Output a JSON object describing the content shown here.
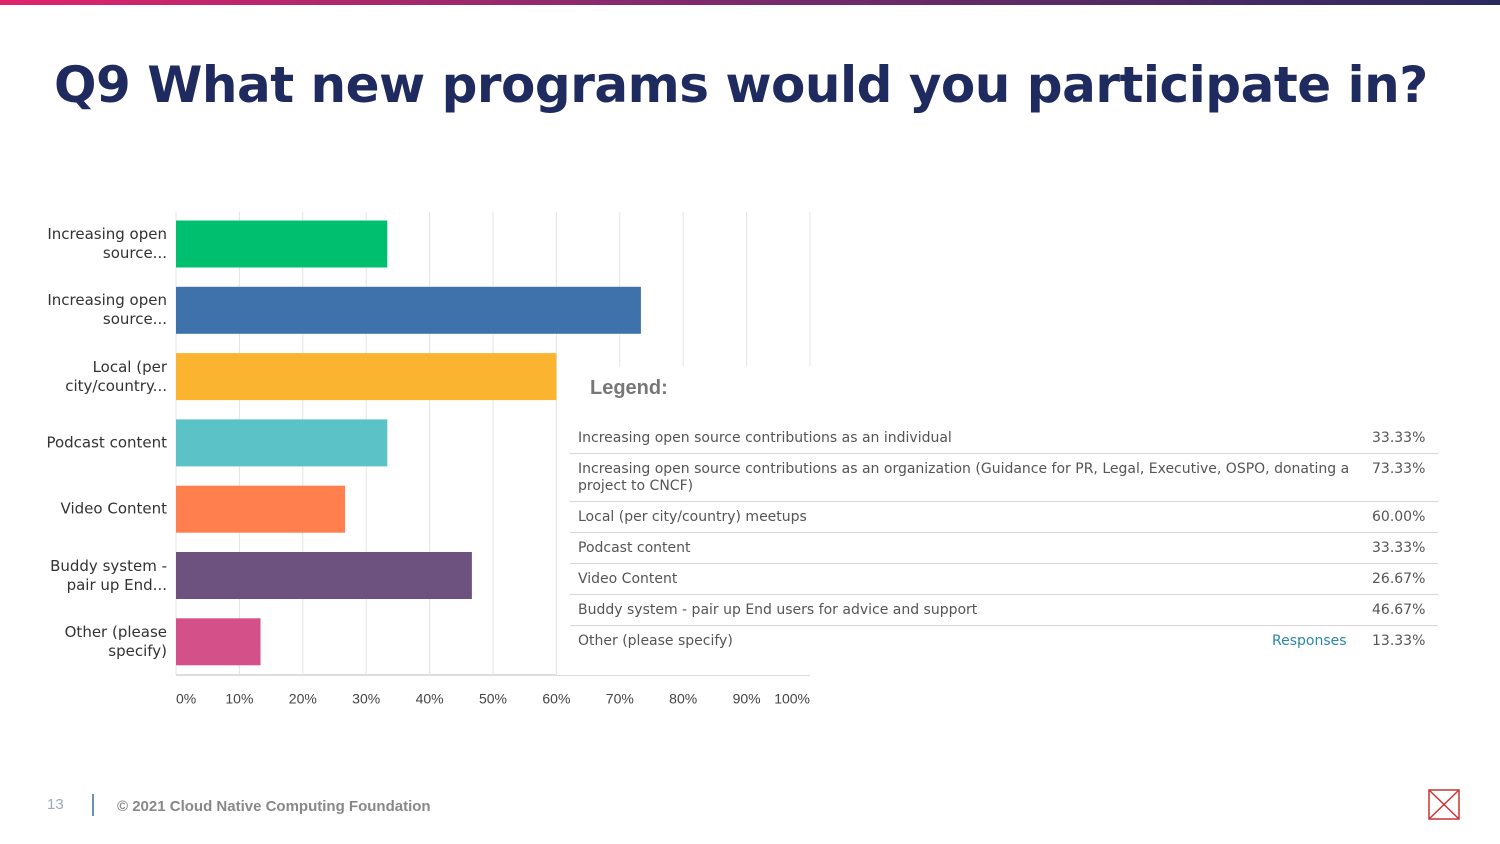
{
  "title": "Q9 What new programs would you participate in?",
  "chart_data": {
    "type": "bar",
    "orientation": "horizontal",
    "categories": [
      "Increasing open source...",
      "Increasing open source...",
      "Local (per city/country...",
      "Podcast content",
      "Video Content",
      "Buddy system - pair up End...",
      "Other (please specify)"
    ],
    "values": [
      33.33,
      73.33,
      60,
      33.33,
      26.67,
      46.67,
      13.33
    ],
    "value_labels": [
      "33.33%",
      "73.33%",
      "60.00%",
      "33.33%",
      "26.67%",
      "46.67%",
      "13.33%"
    ],
    "colors": [
      "#00bf6f",
      "#3f72ab",
      "#fbb430",
      "#5bc2c7",
      "#ff7f4f",
      "#6d5280",
      "#d35188"
    ],
    "xlim": [
      0,
      100
    ],
    "xticks": [
      {
        "value": 0,
        "label": "0%"
      },
      {
        "value": 10,
        "label": "10%"
      },
      {
        "value": 20,
        "label": "20%"
      },
      {
        "value": 30,
        "label": "30%"
      },
      {
        "value": 40,
        "label": "40%"
      },
      {
        "value": 50,
        "label": "50%"
      },
      {
        "value": 60,
        "label": "60%"
      },
      {
        "value": 70,
        "label": "70%"
      },
      {
        "value": 80,
        "label": "80%"
      },
      {
        "value": 90,
        "label": "90%"
      },
      {
        "value": 100,
        "label": "100%"
      }
    ],
    "grid": true,
    "legend_title": "Legend:",
    "legend_entries": [
      "Increasing open source contributions as an individual",
      "Increasing open source contributions as an organization (Guidance for PR, Legal, Executive, OSPO, donating a project to CNCF)",
      "Local (per city/country) meetups",
      "Podcast content",
      "Video Content",
      "Buddy system - pair up End users for advice and support",
      "Other (please specify)"
    ],
    "value_header": "Responses"
  },
  "footer": {
    "page": "13",
    "copyright": "© 2021 Cloud Native Computing Foundation"
  }
}
